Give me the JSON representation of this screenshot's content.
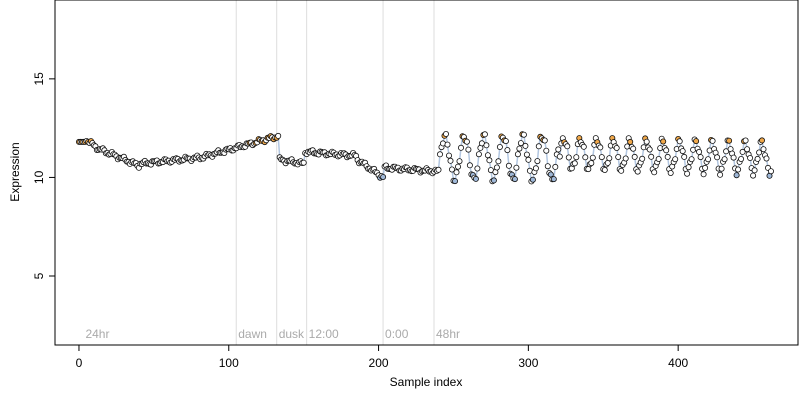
{
  "chart_data": {
    "type": "scatter",
    "xlabel": "Sample index",
    "ylabel": "Expression",
    "xlim": [
      -16,
      480
    ],
    "ylim": [
      1.5,
      19
    ],
    "x_ticks": [
      0,
      100,
      200,
      300,
      400
    ],
    "y_ticks": [
      5,
      10,
      15
    ],
    "grid": false,
    "marker_colors": {
      "default": "#ffffff",
      "high": "#f0a84a",
      "low": "#9fb8d8",
      "outline": "#111111",
      "vline": "#dddddd",
      "annotation": "#aaaaaa"
    },
    "annotations": [
      {
        "x": 3,
        "label": "24hr"
      },
      {
        "x": 105,
        "label": "dawn"
      },
      {
        "x": 132,
        "label": "dusk"
      },
      {
        "x": 152,
        "label": "12:00"
      },
      {
        "x": 203,
        "label": "0:00"
      },
      {
        "x": 237,
        "label": "48hr"
      }
    ],
    "vlines": [
      105,
      132,
      152,
      203,
      237
    ],
    "segments": [
      {
        "from": 0,
        "to": 4,
        "mode": "flat",
        "start": 11.8,
        "end": 11.8
      },
      {
        "from": 5,
        "to": 14,
        "mode": "linear",
        "start": 11.9,
        "end": 11.4
      },
      {
        "from": 15,
        "to": 40,
        "mode": "linear",
        "start": 11.4,
        "end": 10.6
      },
      {
        "from": 41,
        "to": 80,
        "mode": "linear",
        "start": 10.7,
        "end": 11.0
      },
      {
        "from": 81,
        "to": 133,
        "mode": "linear",
        "start": 11.0,
        "end": 12.1
      },
      {
        "from": 134,
        "to": 150,
        "mode": "linear",
        "start": 10.9,
        "end": 10.7
      },
      {
        "from": 151,
        "to": 185,
        "mode": "linear",
        "start": 11.3,
        "end": 11.1
      },
      {
        "from": 186,
        "to": 203,
        "mode": "linear",
        "start": 10.9,
        "end": 10.0
      },
      {
        "from": 204,
        "to": 240,
        "mode": "linear",
        "start": 10.5,
        "end": 10.3
      },
      {
        "from": 241,
        "to": 320,
        "mode": "wave",
        "start": 11.0,
        "end": 11.0,
        "amp": 1.1,
        "period": 13
      },
      {
        "from": 321,
        "to": 462,
        "mode": "wave",
        "start": 11.2,
        "end": 11.0,
        "amp": 0.75,
        "period": 11
      }
    ]
  }
}
